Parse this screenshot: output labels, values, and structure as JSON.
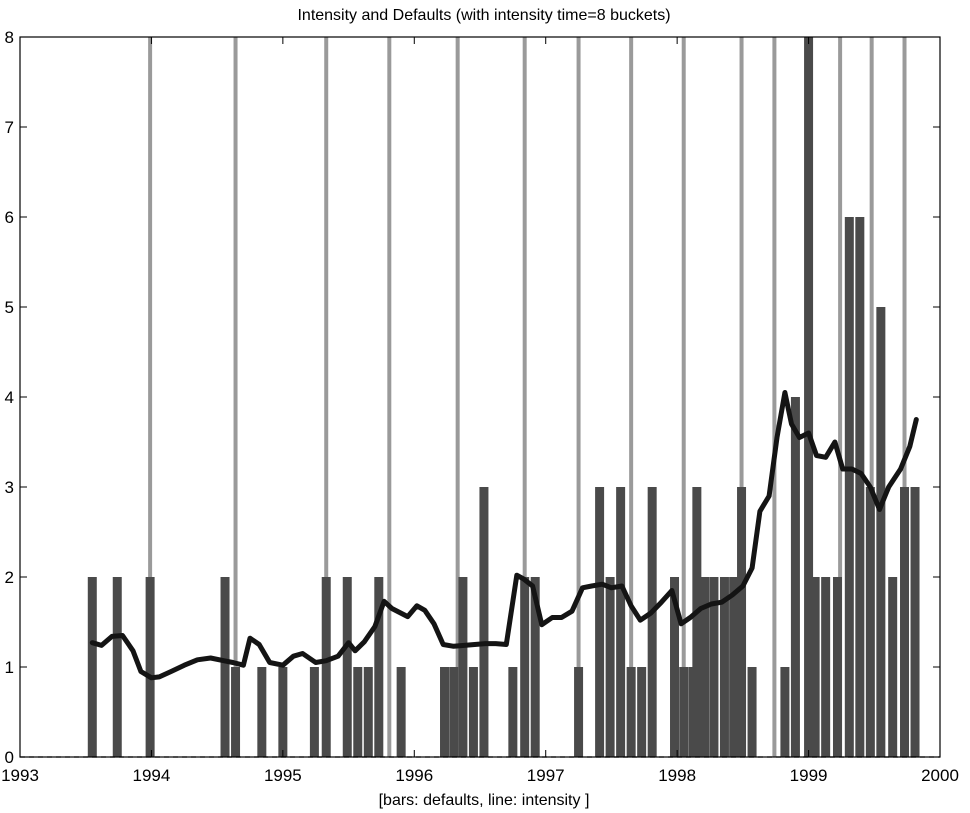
{
  "chart_data": {
    "type": "bar",
    "title": "Intensity and Defaults (with intensity time=8 buckets)",
    "xlabel": "[bars: defaults, line: intensity ]",
    "ylabel": "",
    "xlim": [
      1993,
      2000
    ],
    "ylim": [
      0,
      8
    ],
    "xticks": [
      "1993",
      "1994",
      "1995",
      "1996",
      "1997",
      "1998",
      "1999",
      "2000"
    ],
    "yticks": [
      "0",
      "1",
      "2",
      "3",
      "4",
      "5",
      "6",
      "7",
      "8"
    ],
    "grid": false,
    "colors": {
      "default_bars": "#4a4a4a",
      "bucket_lines": "#9a9a9a",
      "intensity_line": "#141414"
    },
    "series": [
      {
        "kind": "bars",
        "x": [
          1993.55,
          1993.74,
          1993.99,
          1994.56,
          1994.64,
          1994.84,
          1995.0,
          1995.24,
          1995.33,
          1995.49,
          1995.57,
          1995.65,
          1995.73,
          1995.9,
          1996.23,
          1996.3,
          1996.37,
          1996.45,
          1996.53,
          1996.75,
          1996.84,
          1996.92,
          1997.25,
          1997.41,
          1997.49,
          1997.57,
          1997.65,
          1997.73,
          1997.81,
          1997.98,
          1998.05,
          1998.12,
          1998.15,
          1998.21,
          1998.28,
          1998.36,
          1998.43,
          1998.49,
          1998.57,
          1998.82,
          1998.9,
          1999.0,
          1999.05,
          1999.13,
          1999.22,
          1999.31,
          1999.39,
          1999.47,
          1999.55,
          1999.64,
          1999.73,
          1999.81
        ],
        "values": [
          2,
          2,
          2,
          2,
          1,
          1,
          1,
          1,
          2,
          2,
          1,
          1,
          2,
          1,
          1,
          1,
          2,
          1,
          3,
          1,
          2,
          2,
          1,
          3,
          2,
          3,
          1,
          1,
          3,
          2,
          1,
          1,
          3,
          2,
          2,
          2,
          2,
          3,
          1,
          1,
          4,
          8,
          2,
          2,
          2,
          6,
          6,
          3,
          5,
          2,
          3,
          3
        ]
      },
      {
        "kind": "bucket-markers",
        "x": [
          1993.99,
          1994.64,
          1995.33,
          1995.81,
          1996.33,
          1996.84,
          1997.25,
          1997.65,
          1998.05,
          1998.49,
          1998.74,
          1998.99,
          1999.24,
          1999.48,
          1999.73
        ]
      },
      {
        "kind": "line",
        "x": [
          1993.55,
          1993.62,
          1993.7,
          1993.78,
          1993.86,
          1993.92,
          1994.0,
          1994.06,
          1994.15,
          1994.25,
          1994.35,
          1994.45,
          1994.55,
          1994.62,
          1994.7,
          1994.75,
          1994.82,
          1994.9,
          1995.0,
          1995.08,
          1995.15,
          1995.25,
          1995.33,
          1995.42,
          1995.5,
          1995.55,
          1995.62,
          1995.7,
          1995.77,
          1995.83,
          1995.95,
          1996.02,
          1996.08,
          1996.15,
          1996.22,
          1996.3,
          1996.38,
          1996.46,
          1996.54,
          1996.62,
          1996.7,
          1996.78,
          1996.83,
          1996.9,
          1996.97,
          1997.05,
          1997.12,
          1997.2,
          1997.28,
          1997.35,
          1997.43,
          1997.5,
          1997.58,
          1997.65,
          1997.72,
          1997.8,
          1997.88,
          1997.96,
          1998.03,
          1998.1,
          1998.18,
          1998.26,
          1998.34,
          1998.42,
          1998.5,
          1998.57,
          1998.63,
          1998.7,
          1998.76,
          1998.82,
          1998.87,
          1998.93,
          1999.0,
          1999.06,
          1999.13,
          1999.2,
          1999.26,
          1999.33,
          1999.4,
          1999.47,
          1999.54,
          1999.61,
          1999.7,
          1999.77,
          1999.82
        ],
        "y": [
          1.27,
          1.24,
          1.34,
          1.35,
          1.18,
          0.95,
          0.88,
          0.89,
          0.95,
          1.02,
          1.08,
          1.1,
          1.07,
          1.05,
          1.02,
          1.32,
          1.25,
          1.05,
          1.02,
          1.12,
          1.15,
          1.05,
          1.07,
          1.12,
          1.27,
          1.18,
          1.28,
          1.45,
          1.73,
          1.65,
          1.56,
          1.68,
          1.63,
          1.48,
          1.25,
          1.23,
          1.24,
          1.25,
          1.26,
          1.26,
          1.25,
          2.02,
          1.98,
          1.9,
          1.47,
          1.55,
          1.55,
          1.62,
          1.88,
          1.9,
          1.92,
          1.88,
          1.9,
          1.68,
          1.52,
          1.6,
          1.72,
          1.85,
          1.48,
          1.55,
          1.65,
          1.7,
          1.72,
          1.8,
          1.9,
          2.1,
          2.73,
          2.9,
          3.55,
          4.05,
          3.7,
          3.55,
          3.6,
          3.35,
          3.33,
          3.5,
          3.2,
          3.2,
          3.15,
          3.0,
          2.75,
          3.0,
          3.2,
          3.45,
          3.75
        ]
      }
    ]
  }
}
